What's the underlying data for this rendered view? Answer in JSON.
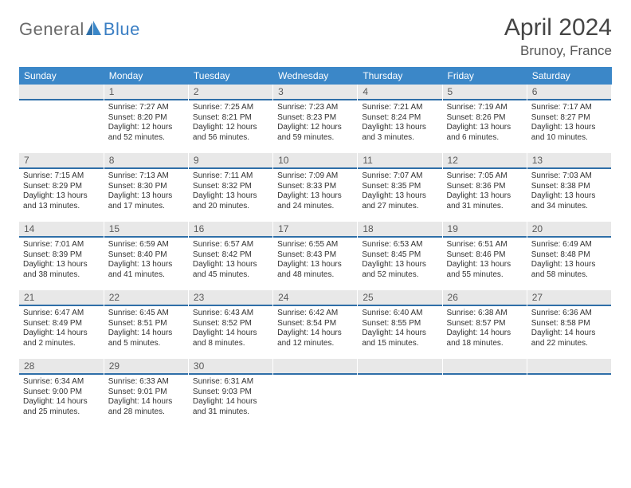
{
  "logo": {
    "part1": "General",
    "part2": "Blue"
  },
  "title": "April 2024",
  "location": "Brunoy, France",
  "colors": {
    "header_bg": "#3b87c8",
    "header_text": "#ffffff",
    "daynum_bg": "#e8e8e8",
    "daynum_border": "#2f6fa8",
    "body_text": "#333333",
    "logo_gray": "#6a6a6a",
    "logo_blue": "#3b7fc4"
  },
  "weekdays": [
    "Sunday",
    "Monday",
    "Tuesday",
    "Wednesday",
    "Thursday",
    "Friday",
    "Saturday"
  ],
  "weeks": [
    [
      {
        "n": "",
        "sunrise": "",
        "sunset": "",
        "daylight": ""
      },
      {
        "n": "1",
        "sunrise": "Sunrise: 7:27 AM",
        "sunset": "Sunset: 8:20 PM",
        "daylight": "Daylight: 12 hours and 52 minutes."
      },
      {
        "n": "2",
        "sunrise": "Sunrise: 7:25 AM",
        "sunset": "Sunset: 8:21 PM",
        "daylight": "Daylight: 12 hours and 56 minutes."
      },
      {
        "n": "3",
        "sunrise": "Sunrise: 7:23 AM",
        "sunset": "Sunset: 8:23 PM",
        "daylight": "Daylight: 12 hours and 59 minutes."
      },
      {
        "n": "4",
        "sunrise": "Sunrise: 7:21 AM",
        "sunset": "Sunset: 8:24 PM",
        "daylight": "Daylight: 13 hours and 3 minutes."
      },
      {
        "n": "5",
        "sunrise": "Sunrise: 7:19 AM",
        "sunset": "Sunset: 8:26 PM",
        "daylight": "Daylight: 13 hours and 6 minutes."
      },
      {
        "n": "6",
        "sunrise": "Sunrise: 7:17 AM",
        "sunset": "Sunset: 8:27 PM",
        "daylight": "Daylight: 13 hours and 10 minutes."
      }
    ],
    [
      {
        "n": "7",
        "sunrise": "Sunrise: 7:15 AM",
        "sunset": "Sunset: 8:29 PM",
        "daylight": "Daylight: 13 hours and 13 minutes."
      },
      {
        "n": "8",
        "sunrise": "Sunrise: 7:13 AM",
        "sunset": "Sunset: 8:30 PM",
        "daylight": "Daylight: 13 hours and 17 minutes."
      },
      {
        "n": "9",
        "sunrise": "Sunrise: 7:11 AM",
        "sunset": "Sunset: 8:32 PM",
        "daylight": "Daylight: 13 hours and 20 minutes."
      },
      {
        "n": "10",
        "sunrise": "Sunrise: 7:09 AM",
        "sunset": "Sunset: 8:33 PM",
        "daylight": "Daylight: 13 hours and 24 minutes."
      },
      {
        "n": "11",
        "sunrise": "Sunrise: 7:07 AM",
        "sunset": "Sunset: 8:35 PM",
        "daylight": "Daylight: 13 hours and 27 minutes."
      },
      {
        "n": "12",
        "sunrise": "Sunrise: 7:05 AM",
        "sunset": "Sunset: 8:36 PM",
        "daylight": "Daylight: 13 hours and 31 minutes."
      },
      {
        "n": "13",
        "sunrise": "Sunrise: 7:03 AM",
        "sunset": "Sunset: 8:38 PM",
        "daylight": "Daylight: 13 hours and 34 minutes."
      }
    ],
    [
      {
        "n": "14",
        "sunrise": "Sunrise: 7:01 AM",
        "sunset": "Sunset: 8:39 PM",
        "daylight": "Daylight: 13 hours and 38 minutes."
      },
      {
        "n": "15",
        "sunrise": "Sunrise: 6:59 AM",
        "sunset": "Sunset: 8:40 PM",
        "daylight": "Daylight: 13 hours and 41 minutes."
      },
      {
        "n": "16",
        "sunrise": "Sunrise: 6:57 AM",
        "sunset": "Sunset: 8:42 PM",
        "daylight": "Daylight: 13 hours and 45 minutes."
      },
      {
        "n": "17",
        "sunrise": "Sunrise: 6:55 AM",
        "sunset": "Sunset: 8:43 PM",
        "daylight": "Daylight: 13 hours and 48 minutes."
      },
      {
        "n": "18",
        "sunrise": "Sunrise: 6:53 AM",
        "sunset": "Sunset: 8:45 PM",
        "daylight": "Daylight: 13 hours and 52 minutes."
      },
      {
        "n": "19",
        "sunrise": "Sunrise: 6:51 AM",
        "sunset": "Sunset: 8:46 PM",
        "daylight": "Daylight: 13 hours and 55 minutes."
      },
      {
        "n": "20",
        "sunrise": "Sunrise: 6:49 AM",
        "sunset": "Sunset: 8:48 PM",
        "daylight": "Daylight: 13 hours and 58 minutes."
      }
    ],
    [
      {
        "n": "21",
        "sunrise": "Sunrise: 6:47 AM",
        "sunset": "Sunset: 8:49 PM",
        "daylight": "Daylight: 14 hours and 2 minutes."
      },
      {
        "n": "22",
        "sunrise": "Sunrise: 6:45 AM",
        "sunset": "Sunset: 8:51 PM",
        "daylight": "Daylight: 14 hours and 5 minutes."
      },
      {
        "n": "23",
        "sunrise": "Sunrise: 6:43 AM",
        "sunset": "Sunset: 8:52 PM",
        "daylight": "Daylight: 14 hours and 8 minutes."
      },
      {
        "n": "24",
        "sunrise": "Sunrise: 6:42 AM",
        "sunset": "Sunset: 8:54 PM",
        "daylight": "Daylight: 14 hours and 12 minutes."
      },
      {
        "n": "25",
        "sunrise": "Sunrise: 6:40 AM",
        "sunset": "Sunset: 8:55 PM",
        "daylight": "Daylight: 14 hours and 15 minutes."
      },
      {
        "n": "26",
        "sunrise": "Sunrise: 6:38 AM",
        "sunset": "Sunset: 8:57 PM",
        "daylight": "Daylight: 14 hours and 18 minutes."
      },
      {
        "n": "27",
        "sunrise": "Sunrise: 6:36 AM",
        "sunset": "Sunset: 8:58 PM",
        "daylight": "Daylight: 14 hours and 22 minutes."
      }
    ],
    [
      {
        "n": "28",
        "sunrise": "Sunrise: 6:34 AM",
        "sunset": "Sunset: 9:00 PM",
        "daylight": "Daylight: 14 hours and 25 minutes."
      },
      {
        "n": "29",
        "sunrise": "Sunrise: 6:33 AM",
        "sunset": "Sunset: 9:01 PM",
        "daylight": "Daylight: 14 hours and 28 minutes."
      },
      {
        "n": "30",
        "sunrise": "Sunrise: 6:31 AM",
        "sunset": "Sunset: 9:03 PM",
        "daylight": "Daylight: 14 hours and 31 minutes."
      },
      {
        "n": "",
        "sunrise": "",
        "sunset": "",
        "daylight": ""
      },
      {
        "n": "",
        "sunrise": "",
        "sunset": "",
        "daylight": ""
      },
      {
        "n": "",
        "sunrise": "",
        "sunset": "",
        "daylight": ""
      },
      {
        "n": "",
        "sunrise": "",
        "sunset": "",
        "daylight": ""
      }
    ]
  ]
}
